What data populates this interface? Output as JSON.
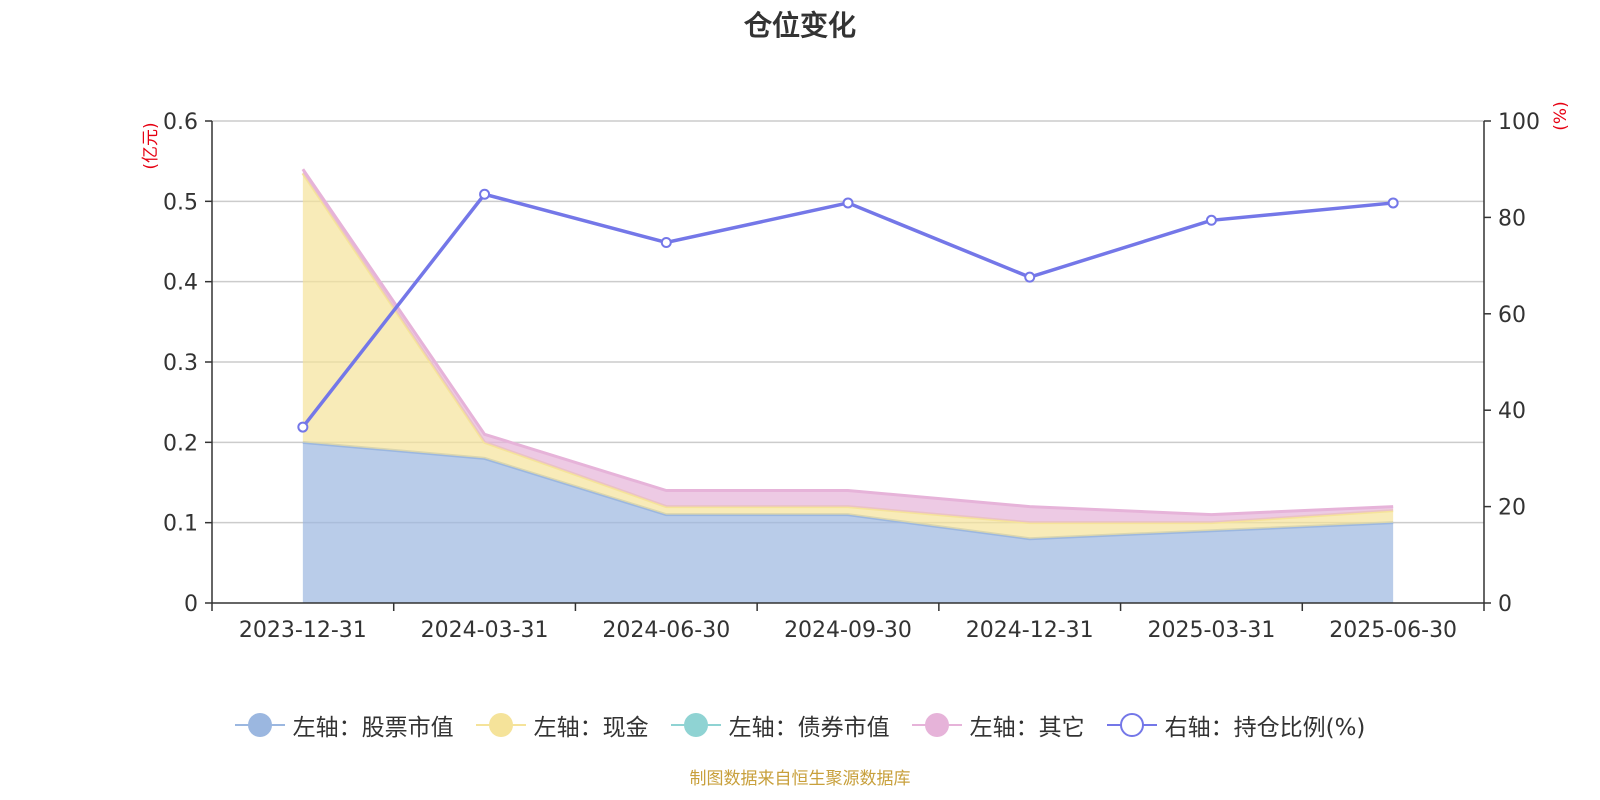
{
  "chart_data": {
    "type": "area",
    "title": "仓位变化",
    "categories": [
      "2023-12-31",
      "2024-03-31",
      "2024-06-30",
      "2024-09-30",
      "2024-12-31",
      "2025-03-31",
      "2025-06-30"
    ],
    "left_axis": {
      "unit": "(亿元)",
      "ylim": [
        0,
        0.6
      ],
      "ticks": [
        "0",
        "0.1",
        "0.2",
        "0.3",
        "0.4",
        "0.5",
        "0.6"
      ]
    },
    "right_axis": {
      "unit": "(%)",
      "ylim": [
        0,
        100
      ],
      "ticks": [
        "0",
        "20",
        "40",
        "60",
        "80",
        "100"
      ]
    },
    "stacked_series": [
      {
        "name": "左轴：股票市值",
        "color": "#9bb7e0",
        "values": [
          0.2,
          0.18,
          0.11,
          0.11,
          0.08,
          0.09,
          0.1
        ]
      },
      {
        "name": "左轴：现金",
        "color": "#f5e39a",
        "values": [
          0.335,
          0.02,
          0.01,
          0.01,
          0.02,
          0.01,
          0.015
        ]
      },
      {
        "name": "左轴：债券市值",
        "color": "#8fd3d3",
        "values": [
          0,
          0,
          0,
          0,
          0,
          0,
          0
        ]
      },
      {
        "name": "左轴：其它",
        "color": "#e6b3d9",
        "values": [
          0.005,
          0.01,
          0.02,
          0.02,
          0.02,
          0.01,
          0.005
        ]
      }
    ],
    "line_series": {
      "name": "右轴：持仓比例(%)",
      "color": "#7477e8",
      "values": [
        36.5,
        84.8,
        74.8,
        83.0,
        67.6,
        79.4,
        83.0
      ]
    },
    "grid": true,
    "legend_position": "bottom"
  },
  "source": "制图数据来自恒生聚源数据库"
}
